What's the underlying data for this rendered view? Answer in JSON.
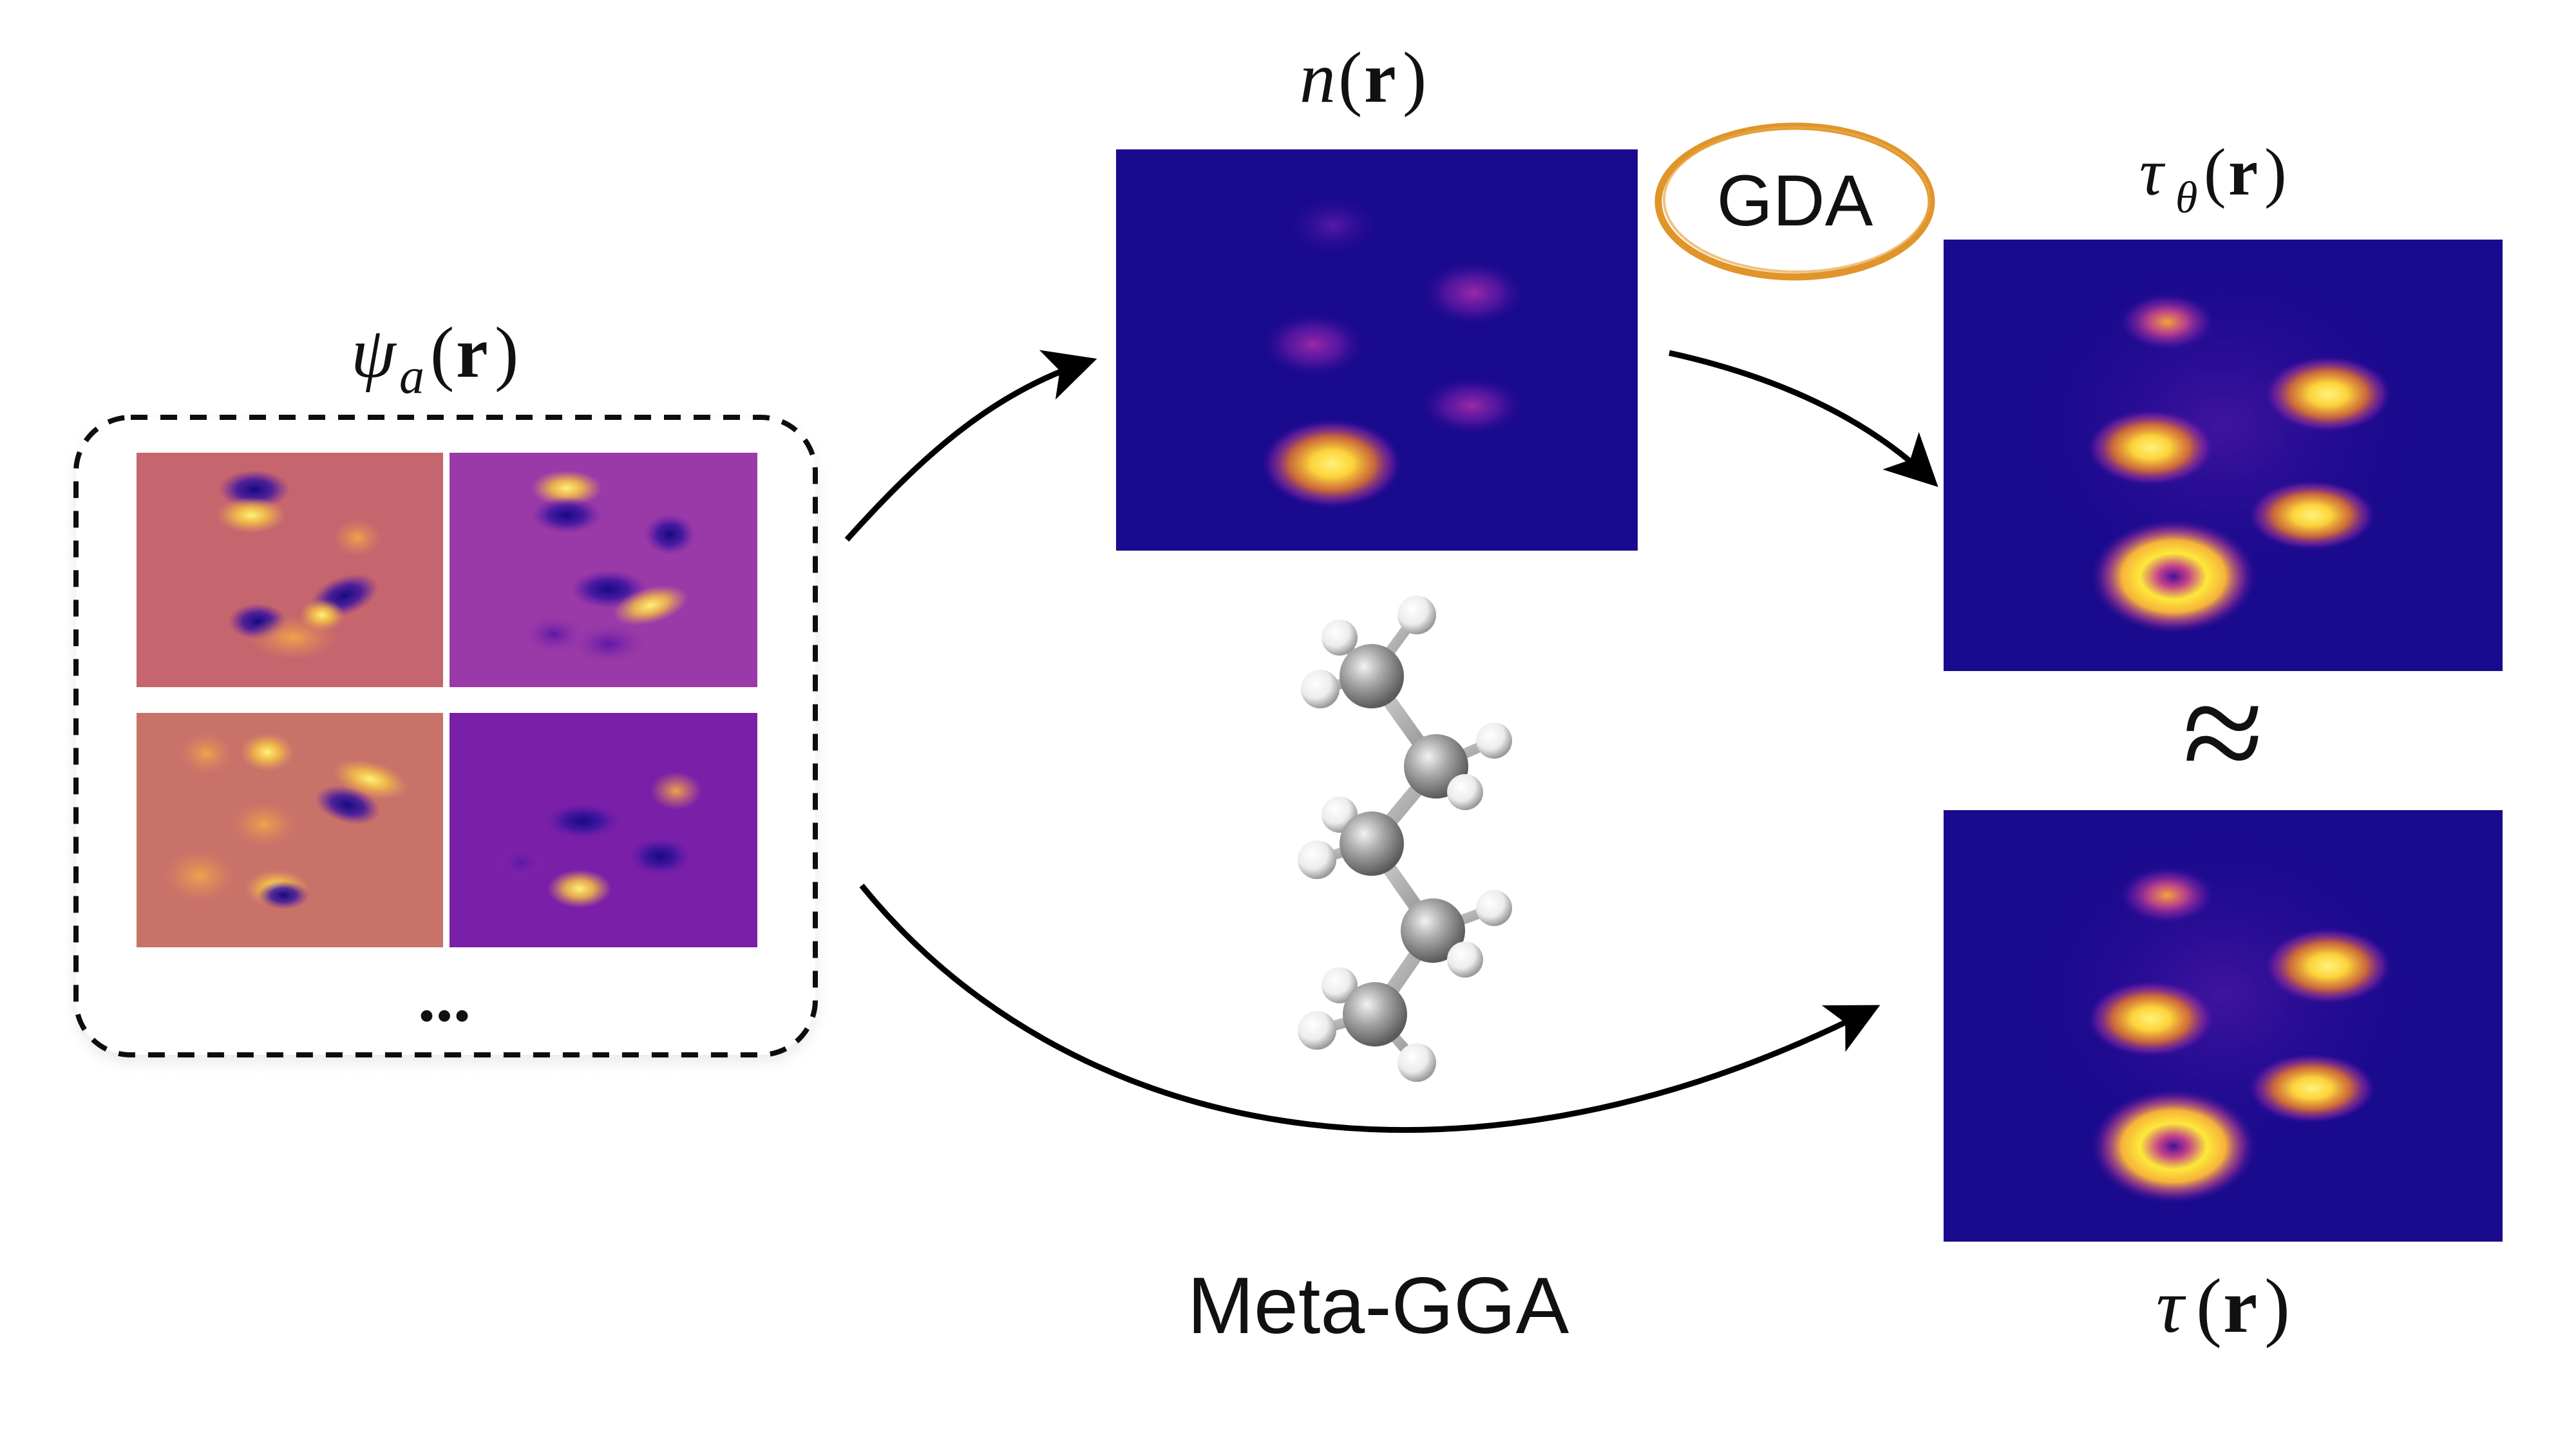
{
  "labels": {
    "psi": {
      "sym": "ψ",
      "sub": "a",
      "paren_open": "(",
      "r": "r",
      "paren_close": ")"
    },
    "n": {
      "sym": "n",
      "paren_open": "(",
      "r": "r",
      "paren_close": ")"
    },
    "tau_theta": {
      "sym": "τ",
      "sub": "θ",
      "paren_open": "(",
      "r": "r",
      "paren_close": ")"
    },
    "tau": {
      "sym": "τ",
      "paren_open": "(",
      "r": "r",
      "paren_close": ")"
    },
    "ellipsis": "...",
    "approx": "≈",
    "gda": "GDA",
    "meta_gga": "Meta-GGA"
  },
  "colors": {
    "heatmap_bg": "#1a0a8e",
    "heatmap_purple": "#8a1fa8",
    "heatmap_orange": "#e88a2a",
    "heatmap_yellow": "#fde93a",
    "wavefunction_rose": "#c4626e",
    "wavefunction_violet": "#7a1fa8",
    "gda_ring": "#e0952a",
    "arrow": "#000000",
    "carbon_atom": "#9a9a9a",
    "hydrogen_atom": "#f2f2f2"
  },
  "icons": {
    "molecule": "pentane-ball-and-stick",
    "dashed_box": "dashed-rounded-rectangle"
  }
}
